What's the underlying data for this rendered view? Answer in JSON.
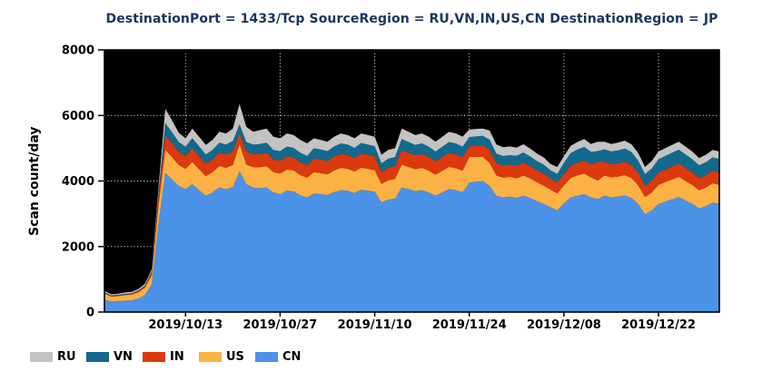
{
  "chart_data": {
    "type": "area",
    "stacked": true,
    "title": "DestinationPort = 1433/Tcp SourceRegion = RU,VN,IN,US,CN DestinationRegion = JP",
    "title_color": "#17375e",
    "ylabel": "Scan count/day",
    "xlabel": "",
    "ylim": [
      0,
      8000
    ],
    "yticks": [
      0,
      2000,
      4000,
      6000,
      8000
    ],
    "xtick_labels": [
      "2019/10/13",
      "2019/10/27",
      "2019/11/10",
      "2019/11/24",
      "2019/12/08",
      "2019/12/22"
    ],
    "grid": true,
    "plot_background": "#000000",
    "gridline_color": "#f5f5f5",
    "legend_position": "bottom-left",
    "stack_order_bottom_to_top": [
      "CN",
      "US",
      "IN",
      "VN",
      "RU"
    ],
    "dates": [
      "2019/10/01",
      "2019/10/02",
      "2019/10/03",
      "2019/10/04",
      "2019/10/05",
      "2019/10/06",
      "2019/10/07",
      "2019/10/08",
      "2019/10/09",
      "2019/10/10",
      "2019/10/11",
      "2019/10/12",
      "2019/10/13",
      "2019/10/14",
      "2019/10/15",
      "2019/10/16",
      "2019/10/17",
      "2019/10/18",
      "2019/10/19",
      "2019/10/20",
      "2019/10/21",
      "2019/10/22",
      "2019/10/23",
      "2019/10/24",
      "2019/10/25",
      "2019/10/26",
      "2019/10/27",
      "2019/10/28",
      "2019/10/29",
      "2019/10/30",
      "2019/10/31",
      "2019/11/01",
      "2019/11/02",
      "2019/11/03",
      "2019/11/04",
      "2019/11/05",
      "2019/11/06",
      "2019/11/07",
      "2019/11/08",
      "2019/11/09",
      "2019/11/10",
      "2019/11/11",
      "2019/11/12",
      "2019/11/13",
      "2019/11/14",
      "2019/11/15",
      "2019/11/16",
      "2019/11/17",
      "2019/11/18",
      "2019/11/19",
      "2019/11/20",
      "2019/11/21",
      "2019/11/22",
      "2019/11/23",
      "2019/11/24",
      "2019/11/25",
      "2019/11/26",
      "2019/11/27",
      "2019/11/28",
      "2019/11/29",
      "2019/11/30",
      "2019/12/01",
      "2019/12/02",
      "2019/12/03",
      "2019/12/04",
      "2019/12/05",
      "2019/12/06",
      "2019/12/07",
      "2019/12/08",
      "2019/12/09",
      "2019/12/10",
      "2019/12/11",
      "2019/12/12",
      "2019/12/13",
      "2019/12/14",
      "2019/12/15",
      "2019/12/16",
      "2019/12/17",
      "2019/12/18",
      "2019/12/19",
      "2019/12/20",
      "2019/12/21",
      "2019/12/22",
      "2019/12/23",
      "2019/12/24",
      "2019/12/25",
      "2019/12/26",
      "2019/12/27",
      "2019/12/28",
      "2019/12/29",
      "2019/12/30",
      "2019/12/31"
    ],
    "series": [
      {
        "name": "RU",
        "color": "#c3c3c3",
        "values": [
          40,
          35,
          35,
          38,
          40,
          45,
          50,
          60,
          150,
          430,
          360,
          280,
          250,
          290,
          290,
          290,
          300,
          330,
          340,
          380,
          620,
          460,
          390,
          420,
          430,
          400,
          390,
          400,
          390,
          390,
          390,
          300,
          290,
          290,
          295,
          300,
          290,
          290,
          290,
          290,
          290,
          260,
          270,
          270,
          320,
          310,
          300,
          300,
          305,
          300,
          305,
          310,
          305,
          305,
          230,
          225,
          225,
          280,
          275,
          270,
          270,
          250,
          250,
          240,
          230,
          220,
          190,
          210,
          200,
          220,
          230,
          240,
          235,
          290,
          230,
          230,
          235,
          240,
          235,
          230,
          220,
          230,
          235,
          235,
          240,
          245,
          240,
          235,
          225,
          230,
          230,
          230
        ]
      },
      {
        "name": "VN",
        "color": "#116a8e",
        "values": [
          20,
          18,
          18,
          20,
          20,
          25,
          30,
          50,
          150,
          360,
          330,
          300,
          290,
          310,
          300,
          280,
          290,
          300,
          300,
          310,
          280,
          290,
          290,
          300,
          310,
          290,
          290,
          300,
          290,
          290,
          280,
          310,
          305,
          300,
          310,
          320,
          315,
          305,
          320,
          315,
          310,
          270,
          280,
          285,
          340,
          330,
          315,
          320,
          315,
          300,
          315,
          330,
          325,
          315,
          280,
          285,
          290,
          310,
          290,
          285,
          280,
          300,
          310,
          290,
          280,
          275,
          250,
          265,
          340,
          385,
          400,
          410,
          395,
          330,
          390,
          390,
          395,
          400,
          395,
          375,
          355,
          370,
          400,
          410,
          415,
          425,
          415,
          400,
          385,
          395,
          405,
          405
        ]
      },
      {
        "name": "IN",
        "color": "#dc390c",
        "values": [
          25,
          20,
          22,
          25,
          26,
          30,
          40,
          70,
          250,
          460,
          430,
          400,
          390,
          420,
          400,
          380,
          390,
          410,
          410,
          420,
          320,
          400,
          400,
          410,
          410,
          390,
          390,
          400,
          400,
          390,
          380,
          420,
          415,
          410,
          425,
          430,
          425,
          415,
          430,
          425,
          420,
          360,
          380,
          385,
          440,
          430,
          425,
          430,
          420,
          410,
          420,
          430,
          430,
          420,
          330,
          340,
          345,
          400,
          380,
          375,
          375,
          390,
          390,
          380,
          370,
          365,
          340,
          330,
          350,
          375,
          390,
          400,
          390,
          570,
          410,
          400,
          405,
          410,
          400,
          375,
          345,
          360,
          385,
          390,
          400,
          405,
          395,
          385,
          370,
          375,
          385,
          380
        ]
      },
      {
        "name": "US",
        "color": "#fbb144",
        "values": [
          185,
          150,
          155,
          165,
          170,
          190,
          220,
          280,
          550,
          700,
          680,
          640,
          620,
          680,
          640,
          600,
          620,
          660,
          650,
          670,
          830,
          600,
          620,
          640,
          650,
          620,
          630,
          650,
          640,
          620,
          600,
          650,
          640,
          630,
          660,
          680,
          670,
          660,
          680,
          670,
          660,
          560,
          590,
          600,
          700,
          680,
          670,
          680,
          660,
          640,
          660,
          680,
          670,
          660,
          780,
          760,
          740,
          700,
          620,
          600,
          610,
          600,
          620,
          600,
          580,
          560,
          540,
          520,
          545,
          590,
          620,
          630,
          610,
          560,
          620,
          610,
          615,
          620,
          610,
          570,
          530,
          550,
          580,
          595,
          605,
          615,
          600,
          580,
          560,
          570,
          590,
          585
        ]
      },
      {
        "name": "CN",
        "color": "#4c92e8",
        "values": [
          380,
          320,
          330,
          350,
          360,
          410,
          520,
          850,
          2700,
          4250,
          4050,
          3850,
          3750,
          3900,
          3720,
          3550,
          3650,
          3800,
          3750,
          3820,
          4300,
          3900,
          3800,
          3780,
          3800,
          3650,
          3600,
          3700,
          3680,
          3560,
          3500,
          3620,
          3600,
          3570,
          3660,
          3720,
          3700,
          3630,
          3730,
          3700,
          3670,
          3350,
          3430,
          3460,
          3800,
          3750,
          3690,
          3720,
          3650,
          3550,
          3650,
          3750,
          3720,
          3650,
          3950,
          3980,
          4000,
          3850,
          3550,
          3500,
          3520,
          3480,
          3550,
          3480,
          3380,
          3300,
          3200,
          3100,
          3320,
          3500,
          3550,
          3600,
          3500,
          3450,
          3550,
          3500,
          3520,
          3560,
          3480,
          3300,
          2980,
          3100,
          3300,
          3370,
          3440,
          3510,
          3400,
          3300,
          3160,
          3230,
          3340,
          3300
        ]
      }
    ]
  }
}
